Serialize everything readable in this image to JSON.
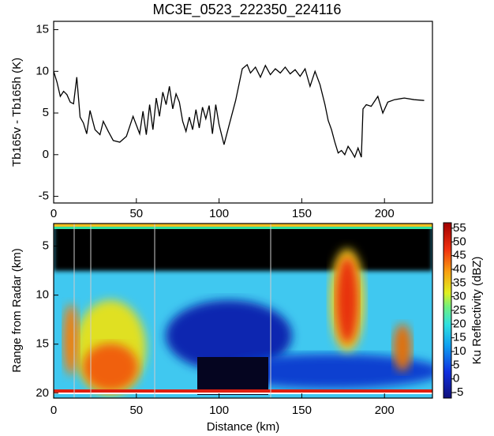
{
  "chart_data": [
    {
      "type": "line",
      "title": "MC3E_0523_222350_224116",
      "ylabel": "Tb165v - Tb165h (K)",
      "color": "#000000",
      "x": [
        0,
        2,
        4,
        6,
        8,
        10,
        12,
        14,
        16,
        18,
        20,
        22,
        25,
        28,
        30,
        33,
        36,
        40,
        44,
        48,
        52,
        54,
        56,
        58,
        60,
        62,
        64,
        66,
        68,
        70,
        72,
        74,
        76,
        78,
        80,
        82,
        84,
        86,
        88,
        90,
        92,
        94,
        96,
        98,
        100,
        103,
        106,
        110,
        114,
        117,
        119,
        122,
        125,
        128,
        131,
        134,
        137,
        140,
        143,
        146,
        149,
        152,
        155,
        158,
        161,
        164,
        166,
        168,
        170,
        172,
        174,
        176,
        178,
        180,
        182,
        184,
        186,
        187,
        189,
        192,
        196,
        199,
        202,
        206,
        212,
        218,
        224
      ],
      "values": [
        10,
        8.7,
        7,
        7.6,
        7.2,
        6.3,
        6.1,
        9.3,
        4.5,
        3.8,
        2.5,
        5.3,
        3,
        2.4,
        4,
        2.8,
        1.7,
        1.5,
        2.2,
        4.6,
        2.5,
        5.2,
        2.4,
        6,
        3,
        6.8,
        4.6,
        7.5,
        6,
        8.2,
        5.5,
        7.3,
        6.3,
        4,
        2.8,
        4.5,
        3,
        5.4,
        3.2,
        5.7,
        4.3,
        5.9,
        2.5,
        6,
        3.6,
        1.2,
        3.5,
        6.5,
        10.3,
        10.8,
        9.8,
        10.5,
        9.3,
        10.7,
        9.6,
        10.3,
        9.8,
        10.5,
        9.7,
        10.2,
        9.4,
        10.3,
        8.2,
        10,
        8.4,
        6,
        4.1,
        3,
        1.5,
        0.2,
        0.5,
        0,
        1,
        0.4,
        -0.3,
        0.8,
        -0.3,
        5.5,
        6,
        5.8,
        7,
        5,
        6.3,
        6.6,
        6.8,
        6.6,
        6.5
      ],
      "xlim": [
        0,
        229
      ],
      "xticks": [
        0,
        50,
        100,
        150,
        200
      ],
      "ylim": [
        -5.8,
        16
      ],
      "yticks": [
        -5,
        0,
        5,
        10,
        15
      ]
    },
    {
      "type": "heatmap",
      "xlabel": "Distance (km)",
      "ylabel": "Range from Radar (km)",
      "colorbar_label": "Ku Reflectivity (dBZ)",
      "xlim": [
        0,
        229
      ],
      "xticks": [
        0,
        50,
        100,
        150,
        200
      ],
      "ylim": [
        20.5,
        2.7
      ],
      "yticks": [
        5,
        10,
        15,
        20
      ],
      "zlim": [
        -7,
        57
      ],
      "zticks": [
        -5,
        0,
        5,
        10,
        15,
        20,
        25,
        30,
        35,
        40,
        45,
        50,
        55
      ]
    }
  ]
}
